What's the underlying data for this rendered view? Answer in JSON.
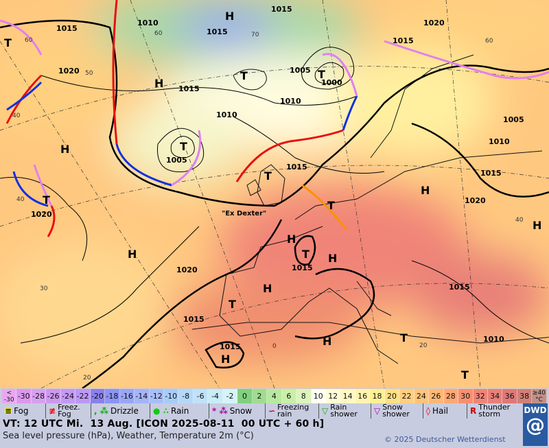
{
  "map": {
    "isobar_labels": [
      "1015",
      "1010",
      "1015",
      "1015",
      "1020",
      "1020",
      "1015",
      "1005",
      "1000",
      "1015",
      "1010",
      "1010",
      "1005",
      "1015",
      "1005",
      "1010",
      "1015",
      "1020",
      "1020",
      "1020",
      "1015",
      "1015",
      "1015",
      "1015",
      "1010"
    ],
    "pressure_centers": [
      "T",
      "H",
      "T",
      "T",
      "H",
      "H",
      "T",
      "T",
      "T",
      "T",
      "H",
      "H",
      "H",
      "T",
      "H",
      "H",
      "H",
      "T",
      "H",
      "H",
      "T",
      "T"
    ],
    "grid_labels": [
      "60",
      "40",
      "40",
      "30",
      "20",
      "0",
      "20",
      "40",
      "60",
      "70",
      "60",
      "50"
    ],
    "annotation": "\"Ex Dexter\"",
    "colors": {
      "cold_front": "#1030e0",
      "warm_front": "#e81010",
      "occlusion": "#e080f0",
      "trough": "#ff9000",
      "isobar": "#000000"
    }
  },
  "scale": {
    "unit": "°C",
    "cells": [
      {
        "label": "<\n-30",
        "color": "#e8a8f0"
      },
      {
        "label": "-30",
        "color": "#dc98f0"
      },
      {
        "label": "-28",
        "color": "#d8a0f0"
      },
      {
        "label": "-26",
        "color": "#cc98f0"
      },
      {
        "label": "-24",
        "color": "#c498f4"
      },
      {
        "label": "-22",
        "color": "#bc98f4"
      },
      {
        "label": "-20",
        "color": "#8a80ec"
      },
      {
        "label": "-18",
        "color": "#8c94f4"
      },
      {
        "label": "-16",
        "color": "#98a6f6"
      },
      {
        "label": "-14",
        "color": "#a4b4f8"
      },
      {
        "label": "-12",
        "color": "#a8bef8"
      },
      {
        "label": "-10",
        "color": "#a8ccf8"
      },
      {
        "label": "-8",
        "color": "#b4d8f8"
      },
      {
        "label": "-6",
        "color": "#c0e2f8"
      },
      {
        "label": "-4",
        "color": "#c8ecf8"
      },
      {
        "label": "-2",
        "color": "#d4f4f8"
      },
      {
        "label": "0",
        "color": "#80d080"
      },
      {
        "label": "2",
        "color": "#a0dc90"
      },
      {
        "label": "4",
        "color": "#b8e8a0"
      },
      {
        "label": "6",
        "color": "#c8f0a8"
      },
      {
        "label": "8",
        "color": "#dcf4bc"
      },
      {
        "label": "10",
        "color": "#fffff4"
      },
      {
        "label": "12",
        "color": "#fffcd8"
      },
      {
        "label": "14",
        "color": "#fff8c4"
      },
      {
        "label": "16",
        "color": "#fff4b0"
      },
      {
        "label": "18",
        "color": "#fff094"
      },
      {
        "label": "20",
        "color": "#ffe084"
      },
      {
        "label": "22",
        "color": "#ffd080"
      },
      {
        "label": "24",
        "color": "#ffc478"
      },
      {
        "label": "26",
        "color": "#ffb874"
      },
      {
        "label": "28",
        "color": "#ffa874"
      },
      {
        "label": "30",
        "color": "#f89070"
      },
      {
        "label": "32",
        "color": "#f08478"
      },
      {
        "label": "34",
        "color": "#e88078"
      },
      {
        "label": "36",
        "color": "#e07878"
      },
      {
        "label": "38",
        "color": "#d08078"
      },
      {
        "label": "≥40\n°C",
        "color": "#c09088"
      }
    ]
  },
  "legend": {
    "fog": "Fog",
    "freezing_fog": "Freez.\nFog",
    "drizzle": "Drizzle",
    "rain": "Rain",
    "snow": "Snow",
    "freezing_rain": "Freezing\nrain",
    "rain_shower": "Rain\nshower",
    "snow_shower": "Snow\nshower",
    "hail": "Hail",
    "thunderstorm": "Thunder\nstorm"
  },
  "footer": {
    "valid_time": "VT: 12 UTC Mi.  13 Aug. [ICON 2025-08-11  00 UTC + 60 h]",
    "subtitle": "Sea level pressure (hPa), Weather, Temperature 2m (°C)",
    "copyright": "© 2025 Deutscher Wetterdienst",
    "logo": "DWD"
  }
}
